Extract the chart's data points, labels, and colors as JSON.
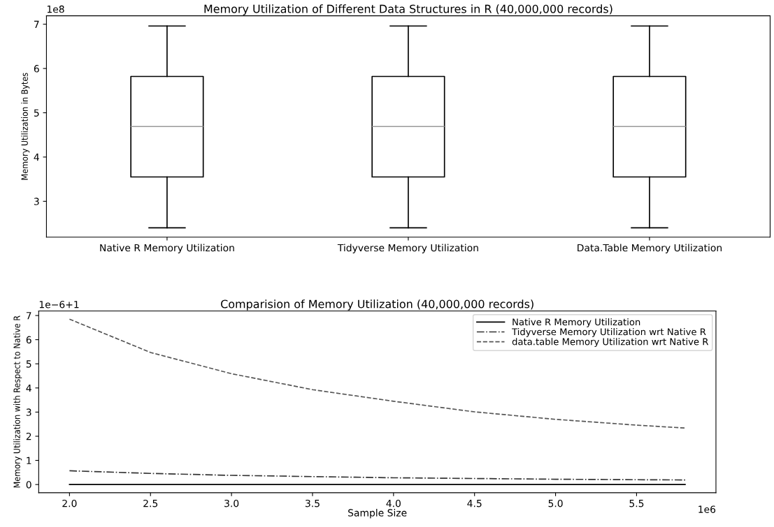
{
  "chart_data": [
    {
      "type": "box",
      "title": "Memory Utilization of Different Data Structures in R (40,000,000 records)",
      "ylabel": "Memory Utilization in Bytes",
      "categories": [
        "Native R Memory Utilization",
        "Tidyverse Memory Utilization",
        "Data.Table Memory Utilization"
      ],
      "boxes": [
        {
          "low": 2.4,
          "q1": 3.55,
          "median": 4.69,
          "q3": 5.82,
          "high": 6.96
        },
        {
          "low": 2.4,
          "q1": 3.55,
          "median": 4.69,
          "q3": 5.82,
          "high": 6.96
        },
        {
          "low": 2.4,
          "q1": 3.55,
          "median": 4.69,
          "q3": 5.82,
          "high": 6.96
        }
      ],
      "color": "#000000",
      "ylim": [
        2.19,
        7.19
      ],
      "yticks": [
        3,
        4,
        5,
        6,
        7
      ],
      "grid": false,
      "annotations": [
        "1e8"
      ]
    },
    {
      "type": "line",
      "title": "Comparision of Memory Utilization (40,000,000 records)",
      "xlabel": "Sample Size",
      "ylabel": "Memory Utilization with Respect to Native R",
      "x": [
        2.0,
        2.5,
        3.0,
        3.5,
        4.0,
        4.5,
        5.0,
        5.5,
        5.8
      ],
      "series": [
        {
          "name": "Native R Memory Utilization",
          "color": "#000000",
          "line_style": "solid",
          "values": [
            0,
            0,
            0,
            0,
            0,
            0,
            0,
            0,
            0
          ]
        },
        {
          "name": "Tidyverse Memory Utilization wrt Native R",
          "color": "#333333",
          "line_style": "dashdot",
          "values": [
            0.57,
            0.46,
            0.38,
            0.33,
            0.28,
            0.25,
            0.22,
            0.2,
            0.19
          ]
        },
        {
          "name": "data.table Memory Utilization wrt Native R",
          "color": "#555555",
          "line_style": "dashed",
          "values": [
            6.85,
            5.47,
            4.59,
            3.93,
            3.45,
            3.01,
            2.7,
            2.46,
            2.34
          ]
        }
      ],
      "xlim": [
        1.81,
        5.99
      ],
      "xticks": [
        {
          "value": 2.0,
          "label": "2.0"
        },
        {
          "value": 2.5,
          "label": "2.5"
        },
        {
          "value": 3.0,
          "label": "3.0"
        },
        {
          "value": 3.5,
          "label": "3.5"
        },
        {
          "value": 4.0,
          "label": "4.0"
        },
        {
          "value": 4.5,
          "label": "4.5"
        },
        {
          "value": 5.0,
          "label": "5.0"
        },
        {
          "value": 5.5,
          "label": "5.5"
        }
      ],
      "ylim": [
        -0.34,
        7.19
      ],
      "yticks": [
        0,
        1,
        2,
        3,
        4,
        5,
        6,
        7
      ],
      "grid": false,
      "legend": "top right",
      "marker": "none",
      "annotations": [
        "1e−6+1",
        "1e6"
      ]
    }
  ]
}
